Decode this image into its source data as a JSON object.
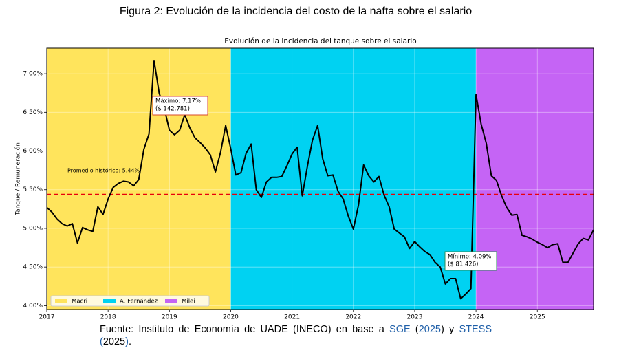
{
  "figure_title": "Figura 2: Evolución de la incidencia del costo de la nafta sobre el salario",
  "caption": [
    "Fuente: Instituto de Economía de UADE (INECO) en base a ",
    "SGE",
    " (",
    "2025",
    ") y ",
    "STESS",
    " ",
    "(",
    "2025",
    ")",
    "."
  ],
  "chart_data": {
    "type": "line",
    "title": "Evolución de la incidencia del tanque sobre el salario",
    "ylabel": "Tanque / Remuneración",
    "grid": true,
    "legend": "lower left",
    "xlim": [
      2017,
      2025.917
    ],
    "ylim": [
      3.95,
      7.33
    ],
    "xticks": [
      2017,
      2018,
      2019,
      2020,
      2021,
      2022,
      2023,
      2024,
      2025
    ],
    "yticks": [
      {
        "value": 4,
        "label": "4.00%"
      },
      {
        "value": 4.5,
        "label": "4.50%"
      },
      {
        "value": 5,
        "label": "5.00%"
      },
      {
        "value": 5.5,
        "label": "5.50%"
      },
      {
        "value": 6,
        "label": "6.00%"
      },
      {
        "value": 6.5,
        "label": "6.50%"
      },
      {
        "value": 7,
        "label": "7.00%"
      }
    ],
    "periods": [
      {
        "name": "Macri",
        "color": "#ffe45c",
        "start": 2017,
        "end": 2020
      },
      {
        "name": "A. Fernández",
        "color": "#00d2f2",
        "start": 2020,
        "end": 2024
      },
      {
        "name": "Milei",
        "color": "#c564f5",
        "start": 2024,
        "end": 2025.917
      }
    ],
    "hline": {
      "value": 5.44,
      "color": "#e8000b",
      "label": "Promedio histórico: 5.44%"
    },
    "x": [
      2017,
      2017.083,
      2017.167,
      2017.25,
      2017.333,
      2017.417,
      2017.5,
      2017.583,
      2017.667,
      2017.75,
      2017.833,
      2017.917,
      2018,
      2018.083,
      2018.167,
      2018.25,
      2018.333,
      2018.417,
      2018.5,
      2018.583,
      2018.667,
      2018.75,
      2018.833,
      2018.917,
      2019,
      2019.083,
      2019.167,
      2019.25,
      2019.333,
      2019.417,
      2019.5,
      2019.583,
      2019.667,
      2019.75,
      2019.833,
      2019.917,
      2020,
      2020.083,
      2020.167,
      2020.25,
      2020.333,
      2020.417,
      2020.5,
      2020.583,
      2020.667,
      2020.75,
      2020.833,
      2020.917,
      2021,
      2021.083,
      2021.167,
      2021.25,
      2021.333,
      2021.417,
      2021.5,
      2021.583,
      2021.667,
      2021.75,
      2021.833,
      2021.917,
      2022,
      2022.083,
      2022.167,
      2022.25,
      2022.333,
      2022.417,
      2022.5,
      2022.583,
      2022.667,
      2022.75,
      2022.833,
      2022.917,
      2023,
      2023.083,
      2023.167,
      2023.25,
      2023.333,
      2023.417,
      2023.5,
      2023.583,
      2023.667,
      2023.75,
      2023.833,
      2023.917,
      2024,
      2024.083,
      2024.167,
      2024.25,
      2024.333,
      2024.417,
      2024.5,
      2024.583,
      2024.667,
      2024.75,
      2024.833,
      2024.917,
      2025,
      2025.083,
      2025.167,
      2025.25,
      2025.333,
      2025.417,
      2025.5,
      2025.583,
      2025.667,
      2025.75,
      2025.833,
      2025.917
    ],
    "series": [
      {
        "color": "#000000",
        "values": [
          5.27,
          5.21,
          5.12,
          5.06,
          5.03,
          5.06,
          4.81,
          5.01,
          4.98,
          4.96,
          5.28,
          5.18,
          5.38,
          5.53,
          5.58,
          5.61,
          5.6,
          5.55,
          5.63,
          6.02,
          6.22,
          7.17,
          6.75,
          6.55,
          6.27,
          6.21,
          6.27,
          6.47,
          6.3,
          6.17,
          6.11,
          6.04,
          5.95,
          5.73,
          5.98,
          6.33,
          6.03,
          5.69,
          5.72,
          5.97,
          6.09,
          5.5,
          5.4,
          5.6,
          5.66,
          5.66,
          5.67,
          5.81,
          5.96,
          6.05,
          5.42,
          5.8,
          6.14,
          6.33,
          5.9,
          5.68,
          5.69,
          5.48,
          5.38,
          5.16,
          4.99,
          5.3,
          5.82,
          5.68,
          5.6,
          5.67,
          5.43,
          5.28,
          4.99,
          4.94,
          4.89,
          4.74,
          4.83,
          4.76,
          4.7,
          4.66,
          4.56,
          4.5,
          4.28,
          4.35,
          4.35,
          4.09,
          4.15,
          4.22,
          6.73,
          6.35,
          6.1,
          5.68,
          5.62,
          5.42,
          5.27,
          5.17,
          5.18,
          4.91,
          4.89,
          4.86,
          4.82,
          4.79,
          4.75,
          4.79,
          4.8,
          4.56,
          4.56,
          4.68,
          4.8,
          4.87,
          4.85,
          4.98
        ]
      }
    ],
    "annotations": [
      {
        "text": [
          "Máximo: 7.17%",
          "($ 142.781)"
        ],
        "point": 21,
        "color": "#d9482b"
      },
      {
        "text": [
          "Mínimo: 4.09%",
          "($ 81.426)"
        ],
        "point": 81,
        "color": "#2e8b57"
      }
    ]
  }
}
